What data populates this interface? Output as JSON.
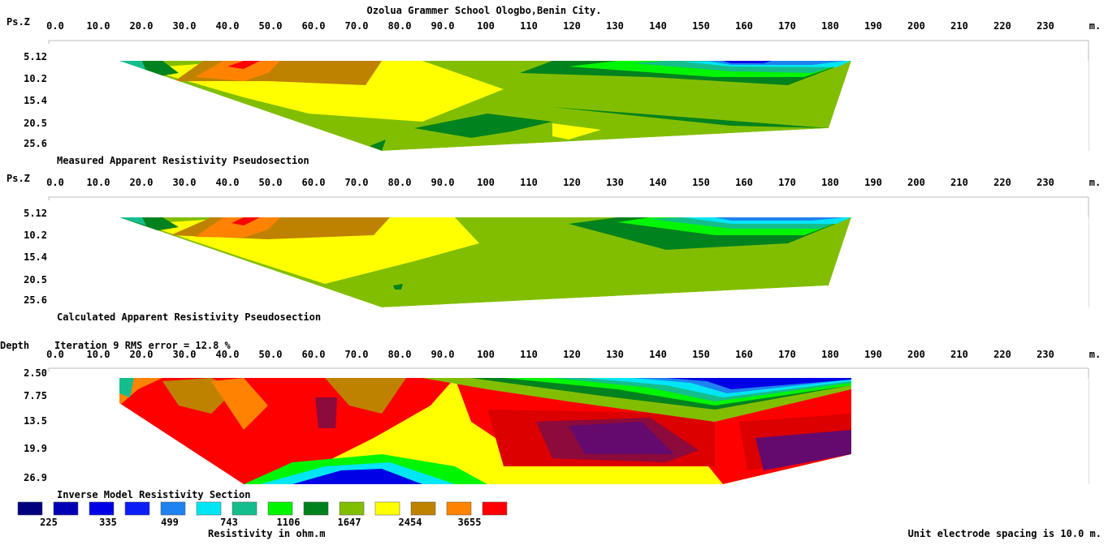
{
  "title": "Ozolua Grammer School Ologbo,Benin City.",
  "colors": {
    "scale": [
      "#00007f",
      "#0000b4",
      "#0000e6",
      "#0a1ef5",
      "#1e82f0",
      "#00e6f5",
      "#14be8c",
      "#00f500",
      "#00821e",
      "#82be00",
      "#ffff00",
      "#be8200",
      "#ff8200",
      "#ff0000",
      "#dc0000",
      "#8c0a3c",
      "#640a6e"
    ]
  },
  "chart_data": [
    {
      "type": "heatmap",
      "name": "measured",
      "ylabel": "Ps.Z",
      "x_unit": "m.",
      "x_ticks": [
        "0.0",
        "10.0",
        "20.0",
        "30.0",
        "40.0",
        "50.0",
        "60.0",
        "70.0",
        "80.0",
        "90.0",
        "100",
        "110",
        "120",
        "130",
        "140",
        "150",
        "160",
        "170",
        "180",
        "190",
        "200",
        "210",
        "220",
        "230"
      ],
      "y_ticks": [
        "5.12",
        "10.2",
        "15.4",
        "20.5",
        "25.6"
      ],
      "caption": "Measured Apparent Resistivity Pseudosection",
      "xlim": [
        0,
        240
      ],
      "ylim": [
        5.12,
        25.6
      ]
    },
    {
      "type": "heatmap",
      "name": "calculated",
      "ylabel": "Ps.Z",
      "x_unit": "m.",
      "x_ticks": [
        "0.0",
        "10.0",
        "20.0",
        "30.0",
        "40.0",
        "50.0",
        "60.0",
        "70.0",
        "80.0",
        "90.0",
        "100",
        "110",
        "120",
        "130",
        "140",
        "150",
        "160",
        "170",
        "180",
        "190",
        "200",
        "210",
        "220",
        "230"
      ],
      "y_ticks": [
        "5.12",
        "10.2",
        "15.4",
        "20.5",
        "25.6"
      ],
      "caption": "Calculated Apparent Resistivity Pseudosection",
      "xlim": [
        0,
        240
      ],
      "ylim": [
        5.12,
        25.6
      ]
    },
    {
      "type": "heatmap",
      "name": "inverse",
      "ylabel": "Depth",
      "header": "Iteration 9 RMS error = 12.8 %",
      "x_unit": "m.",
      "x_ticks": [
        "0.0",
        "10.0",
        "20.0",
        "30.0",
        "40.0",
        "50.0",
        "60.0",
        "70.0",
        "80.0",
        "90.0",
        "100",
        "110",
        "120",
        "130",
        "140",
        "150",
        "160",
        "170",
        "180",
        "190",
        "200",
        "210",
        "220",
        "230"
      ],
      "y_ticks": [
        "2.50",
        "7.75",
        "13.5",
        "19.9",
        "26.9"
      ],
      "caption": "Inverse Model Resistivity Section",
      "xlim": [
        0,
        240
      ],
      "ylim": [
        2.5,
        26.9
      ]
    }
  ],
  "legend": {
    "values": [
      "225",
      "335",
      "499",
      "743",
      "1106",
      "1647",
      "2454",
      "3655"
    ],
    "label": "Resistivity in ohm.m"
  },
  "footer": "Unit electrode spacing is 10.0 m."
}
